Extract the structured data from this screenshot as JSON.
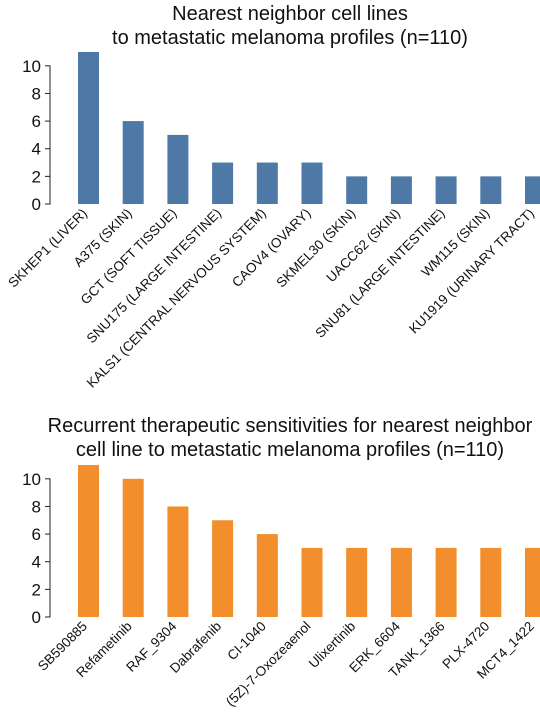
{
  "chart_data": [
    {
      "type": "bar",
      "title": "Nearest neighbor cell lines\nto metastatic melanoma profiles (n=110)",
      "categories": [
        "SKHEP1 (LIVER)",
        "A375 (SKIN)",
        "GCT (SOFT TISSUE)",
        "SNU175 (LARGE INTESTINE)",
        "KALS1 (CENTRAL NERVOUS SYSTEM)",
        "CAOV4 (OVARY)",
        "SKMEL30 (SKIN)",
        "UACC62 (SKIN)",
        "SNU81 (LARGE INTESTINE)",
        "WM115 (SKIN)",
        "KU1919 (URINARY TRACT)"
      ],
      "values": [
        11,
        6,
        5,
        3,
        3,
        3,
        2,
        2,
        2,
        2,
        2
      ],
      "ylim": [
        0,
        11
      ],
      "yticks": [
        "0",
        "2",
        "4",
        "6",
        "8",
        "10"
      ],
      "color": "#4e79a7",
      "grid": false,
      "xlabel": "",
      "ylabel": ""
    },
    {
      "type": "bar",
      "title": "Recurrent therapeutic sensitivities for nearest neighbor\ncell line to metastatic melanoma profiles (n=110)",
      "categories": [
        "SB590885",
        "Refametinib",
        "RAF_9304",
        "Dabrafenib",
        "CI-1040",
        "(5Z)-7-Oxozeaenol",
        "Ulixertinib",
        "ERK_6604",
        "TANK_1366",
        "PLX-4720",
        "MCT4_1422"
      ],
      "values": [
        11,
        10,
        8,
        7,
        6,
        5,
        5,
        5,
        5,
        5,
        5
      ],
      "ylim": [
        0,
        11
      ],
      "yticks": [
        "0",
        "2",
        "4",
        "6",
        "8",
        "10"
      ],
      "color": "#f28e2b",
      "grid": false,
      "xlabel": "",
      "ylabel": ""
    }
  ]
}
